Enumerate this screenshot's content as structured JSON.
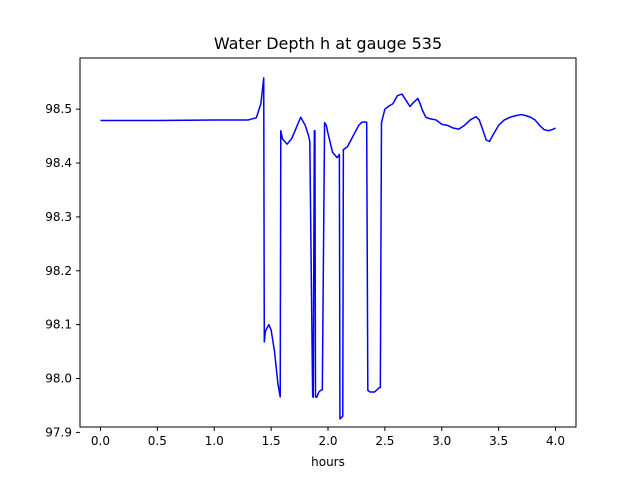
{
  "chart_data": {
    "type": "line",
    "title": "Water Depth h at gauge 535",
    "xlabel": "hours",
    "ylabel": "",
    "xlim": [
      -0.18,
      4.18
    ],
    "ylim": [
      97.91,
      98.595
    ],
    "xticks": [
      0.0,
      0.5,
      1.0,
      1.5,
      2.0,
      2.5,
      3.0,
      3.5,
      4.0
    ],
    "xtick_labels": [
      "0.0",
      "0.5",
      "1.0",
      "1.5",
      "2.0",
      "2.5",
      "3.0",
      "3.5",
      "4.0"
    ],
    "yticks": [
      97.9,
      98.0,
      98.1,
      98.2,
      98.3,
      98.4,
      98.5
    ],
    "ytick_labels": [
      "97.9",
      "98.0",
      "98.1",
      "98.2",
      "98.3",
      "98.4",
      "98.5"
    ],
    "grid": false,
    "series": [
      {
        "color": "#0000ff",
        "x": [
          0.0,
          0.5,
          1.0,
          1.3,
          1.37,
          1.41,
          1.435,
          1.44,
          1.45,
          1.48,
          1.5,
          1.53,
          1.56,
          1.58,
          1.585,
          1.6,
          1.64,
          1.68,
          1.72,
          1.76,
          1.8,
          1.83,
          1.84,
          1.865,
          1.87,
          1.88,
          1.885,
          1.89,
          1.9,
          1.91,
          1.92,
          1.935,
          1.95,
          1.97,
          1.985,
          2.0,
          2.04,
          2.08,
          2.1,
          2.105,
          2.13,
          2.135,
          2.17,
          2.22,
          2.27,
          2.3,
          2.34,
          2.35,
          2.37,
          2.41,
          2.45,
          2.46,
          2.47,
          2.5,
          2.53,
          2.57,
          2.61,
          2.65,
          2.69,
          2.72,
          2.75,
          2.79,
          2.81,
          2.83,
          2.86,
          2.9,
          2.95,
          3.0,
          3.05,
          3.1,
          3.15,
          3.2,
          3.25,
          3.3,
          3.33,
          3.36,
          3.39,
          3.42,
          3.45,
          3.5,
          3.55,
          3.6,
          3.65,
          3.7,
          3.74,
          3.78,
          3.82,
          3.86,
          3.9,
          3.94,
          3.97,
          4.0
        ],
        "values": [
          98.479,
          98.479,
          98.48,
          98.48,
          98.484,
          98.51,
          98.558,
          98.068,
          98.088,
          98.1,
          98.09,
          98.05,
          97.99,
          97.966,
          98.46,
          98.445,
          98.435,
          98.445,
          98.465,
          98.485,
          98.47,
          98.45,
          98.44,
          97.968,
          97.965,
          98.46,
          98.46,
          97.966,
          97.965,
          97.97,
          97.975,
          97.978,
          97.979,
          98.475,
          98.47,
          98.455,
          98.42,
          98.41,
          98.416,
          97.925,
          97.93,
          98.425,
          98.43,
          98.45,
          98.47,
          98.476,
          98.476,
          97.978,
          97.975,
          97.975,
          97.983,
          97.983,
          98.475,
          98.5,
          98.505,
          98.51,
          98.525,
          98.528,
          98.515,
          98.505,
          98.512,
          98.52,
          98.51,
          98.498,
          98.485,
          98.482,
          98.48,
          98.472,
          98.47,
          98.465,
          98.463,
          98.47,
          98.48,
          98.486,
          98.48,
          98.462,
          98.443,
          98.44,
          98.452,
          98.47,
          98.48,
          98.485,
          98.488,
          98.49,
          98.488,
          98.485,
          98.48,
          98.47,
          98.462,
          98.46,
          98.462,
          98.465
        ]
      }
    ]
  }
}
